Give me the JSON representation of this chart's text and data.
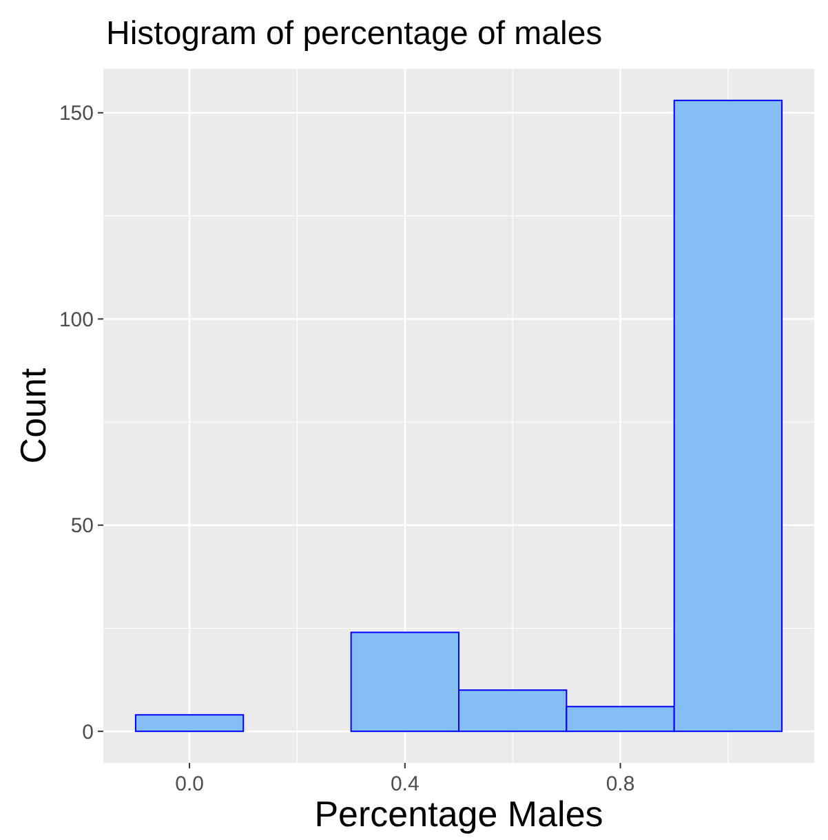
{
  "chart_data": {
    "type": "histogram",
    "title": "Histogram of percentage of males",
    "xlabel": "Percentage Males",
    "ylabel": "Count",
    "bins": [
      -0.1,
      0.1,
      0.3,
      0.5,
      0.7,
      0.9,
      1.1
    ],
    "values": [
      4,
      0,
      24,
      10,
      6,
      153
    ],
    "color": "#85bdf5",
    "xlim": [
      -0.16,
      1.16
    ],
    "xticks": [
      {
        "value": 0,
        "label": "0.0"
      },
      {
        "value": 0.4,
        "label": "0.4"
      },
      {
        "value": 0.8,
        "label": "0.8"
      }
    ],
    "ylim": [
      -7.65,
      160.65
    ],
    "yticks": [
      0,
      50,
      100,
      150
    ],
    "grid": true
  }
}
